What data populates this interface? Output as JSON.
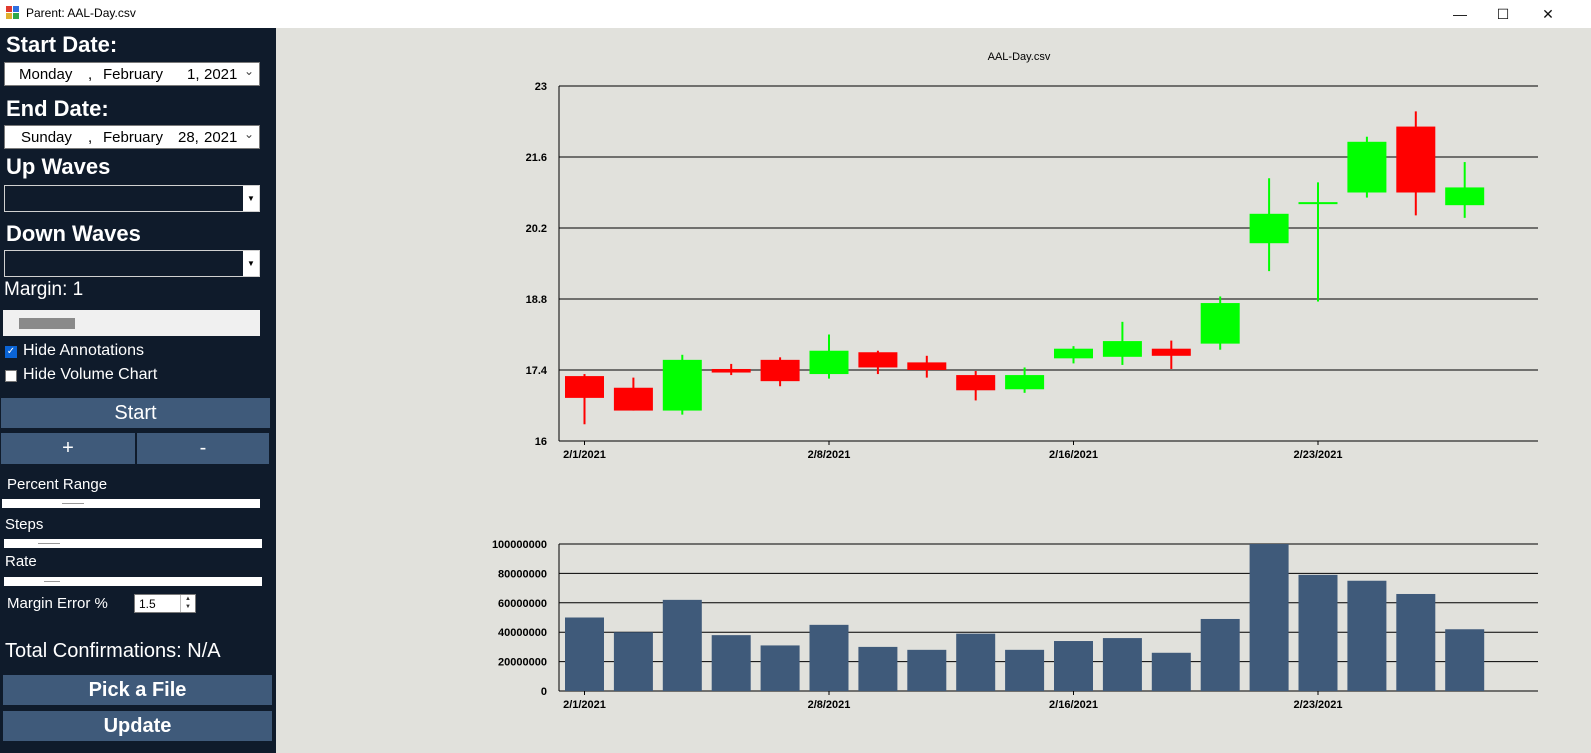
{
  "window": {
    "title": "Parent: AAL-Day.csv",
    "minimize_glyph": "—",
    "maximize_glyph": "☐",
    "close_glyph": "✕"
  },
  "sidebar": {
    "start_date_label": "Start Date:",
    "start_date": {
      "weekday": "Monday",
      "sep": ",",
      "month": "February",
      "day": "1,",
      "year": "2021"
    },
    "end_date_label": "End Date:",
    "end_date": {
      "weekday": "Sunday",
      "sep": ",",
      "month": "February",
      "day": "28,",
      "year": "2021"
    },
    "up_waves_label": "Up Waves",
    "up_waves_value": "",
    "down_waves_label": "Down Waves",
    "down_waves_value": "",
    "margin_label": "Margin: 1",
    "hide_annotations_label": "Hide Annotations",
    "hide_annotations_checked": true,
    "hide_volume_label": "Hide Volume Chart",
    "hide_volume_checked": false,
    "start_button": "Start",
    "plus_button": "+",
    "minus_button": "-",
    "percent_range_label": "Percent Range",
    "steps_label": "Steps",
    "rate_label": "Rate",
    "margin_error_label": "Margin Error %",
    "margin_error_value": "1.5",
    "total_confirmations": "Total Confirmations: N/A",
    "pick_file_button": "Pick a File",
    "update_button": "Update"
  },
  "colors": {
    "up": "#00ff00",
    "down": "#ff0000",
    "volume": "#3f5a7a",
    "sidebar": "#0f1b2b",
    "button": "#3f5a7a"
  },
  "chart_data": [
    {
      "type": "candlestick",
      "title": "AAL-Day.csv",
      "ylim": [
        16,
        23
      ],
      "yticks": [
        "16",
        "17.4",
        "18.8",
        "20.2",
        "21.6",
        "23"
      ],
      "ytick_values": [
        16,
        17.4,
        18.8,
        20.2,
        21.6,
        23
      ],
      "xtick_labels": [
        "2/1/2021",
        "2/8/2021",
        "2/16/2021",
        "2/23/2021"
      ],
      "xtick_index": [
        0,
        5,
        10,
        15
      ],
      "candles": [
        {
          "o": 17.28,
          "h": 17.32,
          "l": 16.33,
          "c": 16.85
        },
        {
          "o": 17.05,
          "h": 17.25,
          "l": 16.6,
          "c": 16.6
        },
        {
          "o": 16.6,
          "h": 17.7,
          "l": 16.52,
          "c": 17.6
        },
        {
          "o": 17.42,
          "h": 17.52,
          "l": 17.3,
          "c": 17.35
        },
        {
          "o": 17.6,
          "h": 17.65,
          "l": 17.08,
          "c": 17.18
        },
        {
          "o": 17.32,
          "h": 18.1,
          "l": 17.23,
          "c": 17.78
        },
        {
          "o": 17.75,
          "h": 17.78,
          "l": 17.32,
          "c": 17.45
        },
        {
          "o": 17.55,
          "h": 17.68,
          "l": 17.25,
          "c": 17.4
        },
        {
          "o": 17.3,
          "h": 17.38,
          "l": 16.8,
          "c": 17.0
        },
        {
          "o": 17.02,
          "h": 17.45,
          "l": 16.95,
          "c": 17.3
        },
        {
          "o": 17.63,
          "h": 17.87,
          "l": 17.53,
          "c": 17.82
        },
        {
          "o": 17.66,
          "h": 18.35,
          "l": 17.5,
          "c": 17.97
        },
        {
          "o": 17.82,
          "h": 17.98,
          "l": 17.42,
          "c": 17.68
        },
        {
          "o": 17.92,
          "h": 18.85,
          "l": 17.8,
          "c": 18.72
        },
        {
          "o": 19.9,
          "h": 21.18,
          "l": 19.35,
          "c": 20.48
        },
        {
          "o": 20.71,
          "h": 21.1,
          "l": 18.75,
          "c": 20.71
        },
        {
          "o": 20.9,
          "h": 22.0,
          "l": 20.8,
          "c": 21.9
        },
        {
          "o": 22.2,
          "h": 22.5,
          "l": 20.45,
          "c": 20.9
        },
        {
          "o": 20.65,
          "h": 21.5,
          "l": 20.4,
          "c": 21.0
        }
      ]
    },
    {
      "type": "bar",
      "title": "",
      "ylim": [
        0,
        100000000
      ],
      "yticks": [
        "0",
        "20000000",
        "40000000",
        "60000000",
        "80000000",
        "100000000"
      ],
      "ytick_values": [
        0,
        20000000,
        40000000,
        60000000,
        80000000,
        100000000
      ],
      "xtick_labels": [
        "2/1/2021",
        "2/8/2021",
        "2/16/2021",
        "2/23/2021"
      ],
      "xtick_index": [
        0,
        5,
        10,
        15
      ],
      "values": [
        50000000,
        40000000,
        62000000,
        38000000,
        31000000,
        45000000,
        30000000,
        28000000,
        39000000,
        28000000,
        34000000,
        36000000,
        26000000,
        49000000,
        100000000,
        79000000,
        75000000,
        66000000,
        42000000
      ]
    }
  ]
}
